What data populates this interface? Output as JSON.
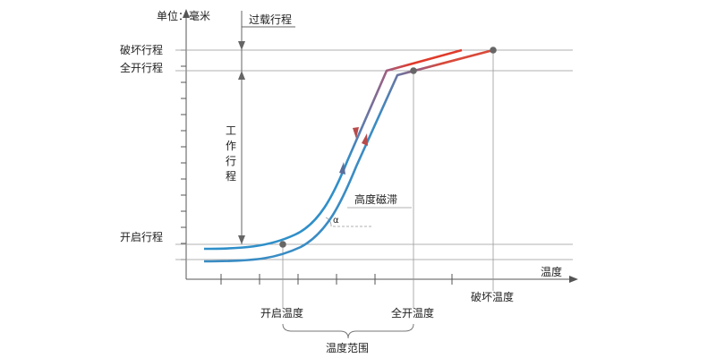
{
  "diagram": {
    "unit_label": "单位：毫米",
    "x_axis_label": "温度",
    "y_labels": {
      "break_travel": "破坏行程",
      "full_open_travel": "全开行程",
      "open_travel": "开启行程"
    },
    "dimension_labels": {
      "overload_travel": "过载行程",
      "working_travel": "工作行程"
    },
    "annotations": {
      "hysteresis": "高度磁滞",
      "angle_symbol": "α"
    },
    "x_labels": {
      "open_temp": "开启温度",
      "full_open_temp": "全开温度",
      "break_temp": "破坏温度"
    },
    "range_label": "温度范围",
    "colors": {
      "heating_curve_low": "#2f8fc9",
      "heating_curve_high": "#e03a2a",
      "cooling_curve_low": "#3a8cc4",
      "cooling_curve_high": "#d84a3a",
      "axis": "#555555",
      "guide": "#888888",
      "point": "#555555"
    }
  }
}
